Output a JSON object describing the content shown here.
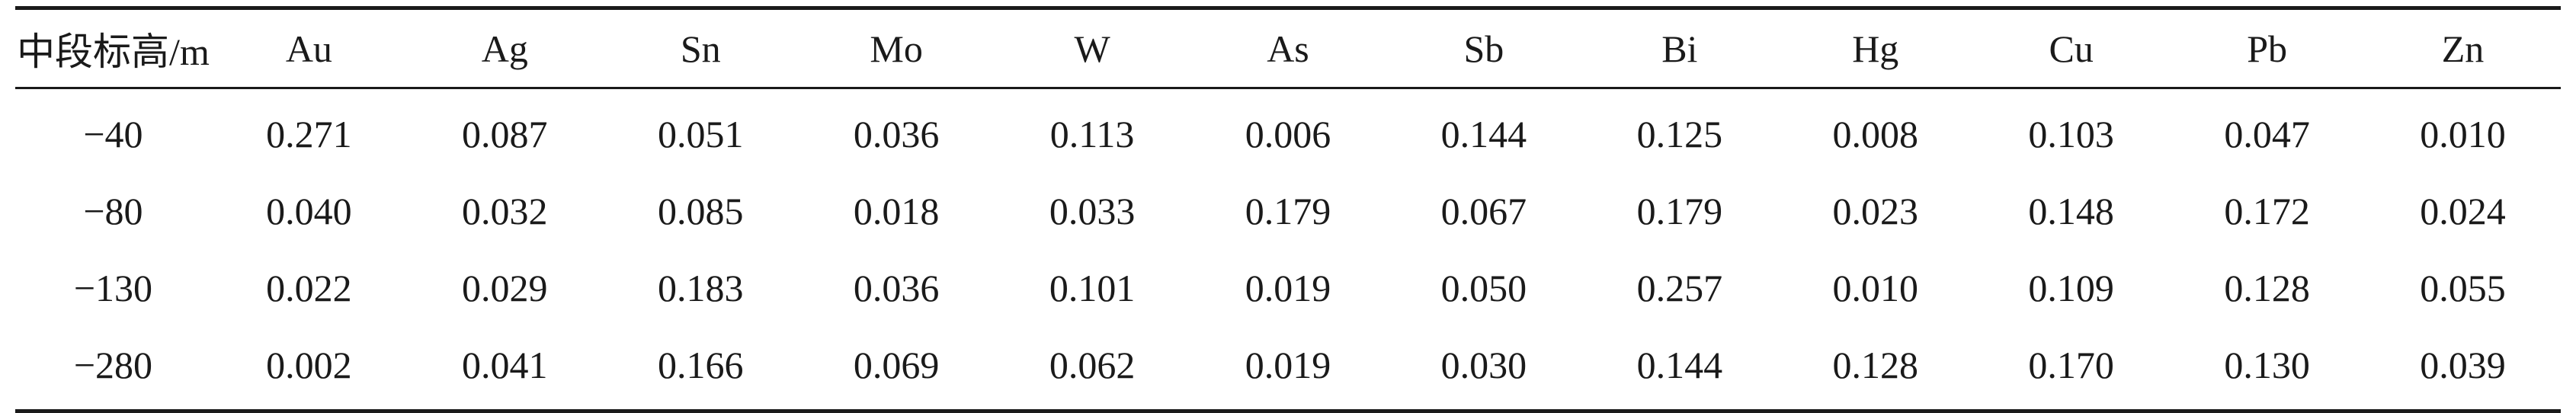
{
  "table": {
    "headers": [
      "中段标高/m",
      "Au",
      "Ag",
      "Sn",
      "Mo",
      "W",
      "As",
      "Sb",
      "Bi",
      "Hg",
      "Cu",
      "Pb",
      "Zn"
    ],
    "rows": [
      [
        "−40",
        "0.271",
        "0.087",
        "0.051",
        "0.036",
        "0.113",
        "0.006",
        "0.144",
        "0.125",
        "0.008",
        "0.103",
        "0.047",
        "0.010"
      ],
      [
        "−80",
        "0.040",
        "0.032",
        "0.085",
        "0.018",
        "0.033",
        "0.179",
        "0.067",
        "0.179",
        "0.023",
        "0.148",
        "0.172",
        "0.024"
      ],
      [
        "−130",
        "0.022",
        "0.029",
        "0.183",
        "0.036",
        "0.101",
        "0.019",
        "0.050",
        "0.257",
        "0.010",
        "0.109",
        "0.128",
        "0.055"
      ],
      [
        "−280",
        "0.002",
        "0.041",
        "0.166",
        "0.069",
        "0.062",
        "0.019",
        "0.030",
        "0.144",
        "0.128",
        "0.170",
        "0.130",
        "0.039"
      ]
    ]
  }
}
